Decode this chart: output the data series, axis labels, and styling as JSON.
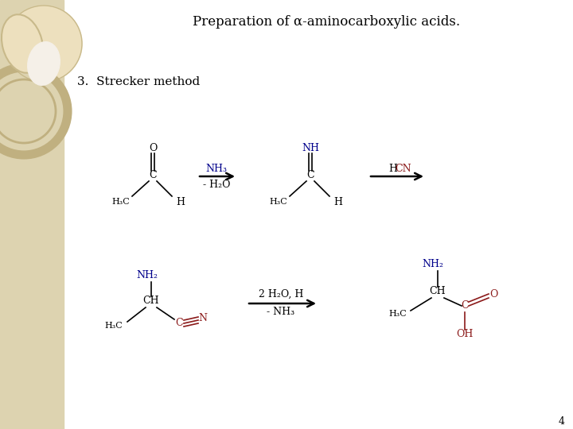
{
  "title": "Preparation of α-aminocarboxylic acids.",
  "subtitle": "3.  Strecker method",
  "bg_color": "#ffffff",
  "sidebar_color": "#ddd3b0",
  "page_number": "4",
  "title_fontsize": 12,
  "subtitle_fontsize": 11,
  "chem_fontsize": 9,
  "small_fontsize": 8,
  "black": "#000000",
  "blue": "#00008b",
  "red": "#8b1a1a"
}
